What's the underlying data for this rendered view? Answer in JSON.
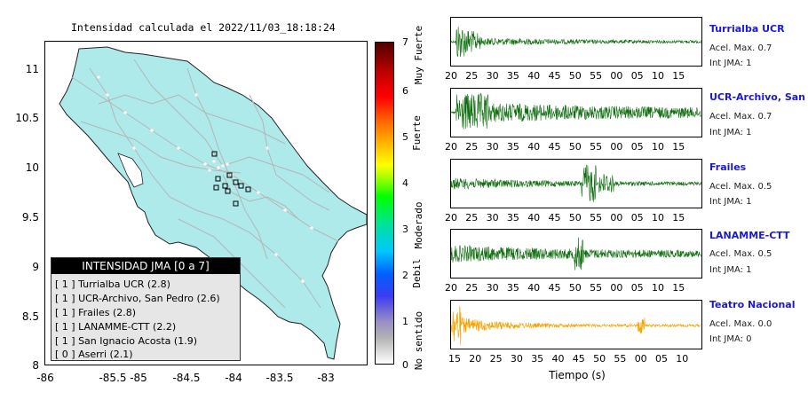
{
  "title": "Intensidad calculada el 2022/11/03_18:18:24",
  "map": {
    "y_ticks": [
      "11",
      "10.5",
      "10",
      "9.5",
      "9",
      "8.5",
      "8"
    ],
    "x_ticks": [
      "-86",
      "-85.5",
      "-85",
      "-84.5",
      "-84",
      "-83.5",
      "-83"
    ],
    "land_color": "#aeeaea",
    "road_color": "#b5b5b5"
  },
  "legend": {
    "heading": "INTENSIDAD JMA [0 a 7]",
    "rows": [
      "[ 1 ]  Turrialba UCR (2.8)",
      "[ 1 ]  UCR-Archivo, San Pedro (2.6)",
      "[ 1 ]  Frailes (2.8)",
      "[ 1 ]  LANAMME-CTT (2.2)",
      "[ 1 ]  San Ignacio Acosta (1.9)",
      "[ 0 ]  Aserri (2.1)"
    ]
  },
  "colorbar": {
    "ticks": [
      "7",
      "6",
      "5",
      "4",
      "3",
      "2",
      "1",
      "0"
    ],
    "labels": [
      "Muy Fuerte",
      "Fuerte",
      "Moderado",
      "Debil",
      "No sentido"
    ]
  },
  "waveforms": [
    {
      "name": "Turrialba UCR",
      "acel": "Acel. Max. 0.7",
      "jma": "Int JMA: 1",
      "color": "#0f6e0f",
      "ticks": [
        "20",
        "25",
        "30",
        "35",
        "40",
        "45",
        "50",
        "55",
        "00",
        "05",
        "10",
        "15"
      ]
    },
    {
      "name": "UCR-Archivo, San Pedro",
      "acel": "Acel. Max. 0.7",
      "jma": "Int JMA: 1",
      "color": "#0f6e0f",
      "ticks": [
        "20",
        "25",
        "30",
        "35",
        "40",
        "45",
        "50",
        "55",
        "00",
        "05",
        "10",
        "15"
      ]
    },
    {
      "name": "Frailes",
      "acel": "Acel. Max. 0.5",
      "jma": "Int JMA: 1",
      "color": "#0f6e0f",
      "ticks": [
        "20",
        "25",
        "30",
        "35",
        "40",
        "45",
        "50",
        "55",
        "00",
        "05",
        "10",
        "15"
      ]
    },
    {
      "name": "LANAMME-CTT",
      "acel": "Acel. Max. 0.5",
      "jma": "Int JMA: 1",
      "color": "#0f6e0f",
      "ticks": [
        "20",
        "25",
        "30",
        "35",
        "40",
        "45",
        "50",
        "55",
        "00",
        "05",
        "10",
        "15"
      ]
    },
    {
      "name": "Teatro Nacional",
      "acel": "Acel. Max. 0.0",
      "jma": "Int JMA: 0",
      "color": "#f4a300",
      "ticks": [
        "15",
        "20",
        "25",
        "30",
        "35",
        "40",
        "45",
        "50",
        "55",
        "00",
        "05",
        "10"
      ]
    }
  ],
  "xlabel": "Tiempo (s)"
}
